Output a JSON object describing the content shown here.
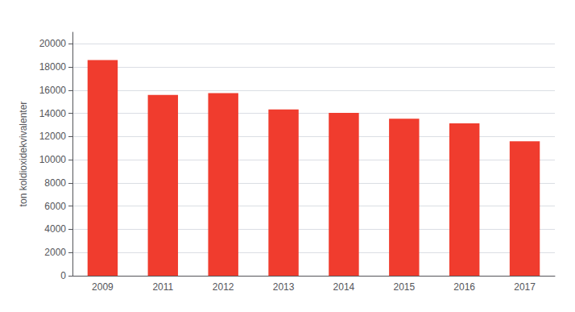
{
  "chart_data": {
    "type": "bar",
    "categories": [
      "2009",
      "2011",
      "2012",
      "2013",
      "2014",
      "2015",
      "2016",
      "2017"
    ],
    "values": [
      18600,
      15600,
      15750,
      14350,
      14050,
      13550,
      13150,
      11600
    ],
    "color": "#f03c2e",
    "ylabel": "ton koldioxidekvivalenter",
    "ylim": [
      0,
      21000
    ],
    "yticks": [
      0,
      2000,
      4000,
      6000,
      8000,
      10000,
      12000,
      14000,
      16000,
      18000,
      20000
    ],
    "grid": true
  }
}
